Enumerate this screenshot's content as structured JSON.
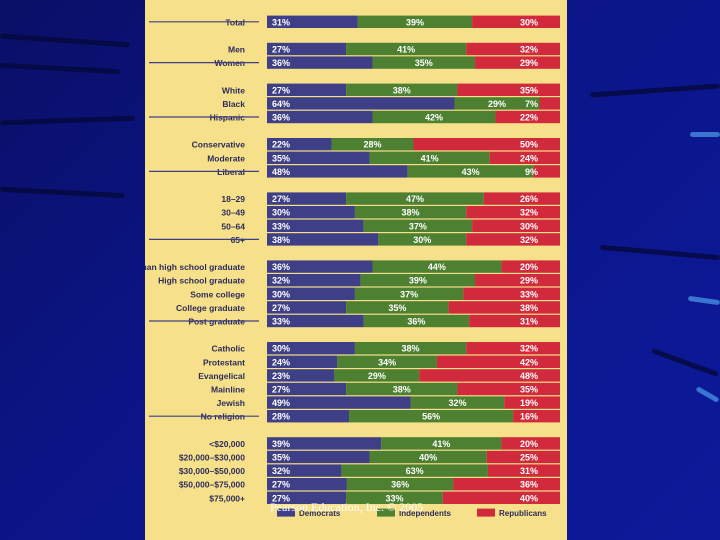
{
  "slide": {
    "footer": "Pearson Education, Inc. © 2005",
    "colors": {
      "background": "#0b148a",
      "panel": "#f7e08a"
    }
  },
  "chart_data": {
    "type": "bar",
    "orientation": "horizontal",
    "stacked": true,
    "percent": true,
    "series": [
      {
        "name": "Democrats",
        "color": "#3e3f86"
      },
      {
        "name": "Independents",
        "color": "#4e8032"
      },
      {
        "name": "Republicans",
        "color": "#d02a3c"
      }
    ],
    "groups": [
      {
        "rows": [
          {
            "label": "Total",
            "values": [
              31,
              39,
              30
            ]
          }
        ]
      },
      {
        "rows": [
          {
            "label": "Men",
            "values": [
              27,
              41,
              32
            ]
          },
          {
            "label": "Women",
            "values": [
              36,
              35,
              29
            ]
          }
        ]
      },
      {
        "rows": [
          {
            "label": "White",
            "values": [
              27,
              38,
              35
            ]
          },
          {
            "label": "Black",
            "values": [
              64,
              29,
              7
            ]
          },
          {
            "label": "Hispanic",
            "values": [
              36,
              42,
              22
            ]
          }
        ]
      },
      {
        "rows": [
          {
            "label": "Conservative",
            "values": [
              22,
              28,
              50
            ]
          },
          {
            "label": "Moderate",
            "values": [
              35,
              41,
              24
            ]
          },
          {
            "label": "Liberal",
            "values": [
              48,
              43,
              9
            ]
          }
        ]
      },
      {
        "rows": [
          {
            "label": "18–29",
            "values": [
              27,
              47,
              26
            ]
          },
          {
            "label": "30–49",
            "values": [
              30,
              38,
              32
            ]
          },
          {
            "label": "50–64",
            "values": [
              33,
              37,
              30
            ]
          },
          {
            "label": "65+",
            "values": [
              38,
              30,
              32
            ]
          }
        ]
      },
      {
        "rows": [
          {
            "label": "Less than high school graduate",
            "values": [
              36,
              44,
              20
            ]
          },
          {
            "label": "High school graduate",
            "values": [
              32,
              39,
              29
            ]
          },
          {
            "label": "Some college",
            "values": [
              30,
              37,
              33
            ]
          },
          {
            "label": "College graduate",
            "values": [
              27,
              35,
              38
            ]
          },
          {
            "label": "Post graduate",
            "values": [
              33,
              36,
              31
            ]
          }
        ]
      },
      {
        "rows": [
          {
            "label": "Catholic",
            "values": [
              30,
              38,
              32
            ]
          },
          {
            "label": "Protestant",
            "values": [
              24,
              34,
              42
            ]
          },
          {
            "label": "Evangelical",
            "values": [
              23,
              29,
              48
            ]
          },
          {
            "label": "Mainline",
            "values": [
              27,
              38,
              35
            ]
          },
          {
            "label": "Jewish",
            "values": [
              49,
              32,
              19
            ]
          },
          {
            "label": "No religion",
            "values": [
              28,
              56,
              16
            ]
          }
        ]
      },
      {
        "rows": [
          {
            "label": "<$20,000",
            "values": [
              39,
              41,
              20
            ]
          },
          {
            "label": "$20,000–$30,000",
            "values": [
              35,
              40,
              25
            ]
          },
          {
            "label": "$30,000–$50,000",
            "values": [
              32,
              63,
              31
            ]
          },
          {
            "label": "$50,000–$75,000",
            "values": [
              27,
              36,
              36
            ]
          },
          {
            "label": "$75,000+",
            "values": [
              27,
              33,
              40
            ]
          }
        ]
      }
    ],
    "xlim": [
      0,
      100
    ]
  }
}
